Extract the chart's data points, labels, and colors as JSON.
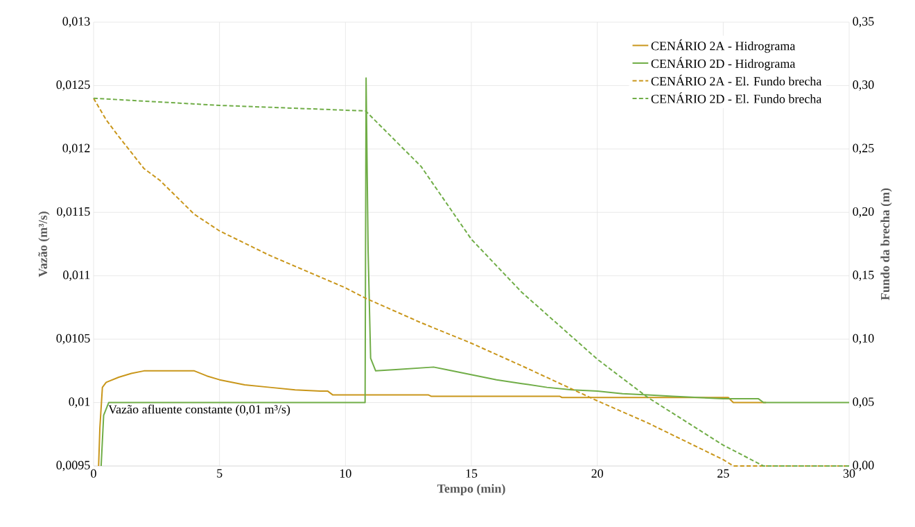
{
  "chart_data": {
    "type": "line",
    "xlabel": "Tempo (min)",
    "ylabel": "Vazão (m³/s)",
    "y2label": "Fundo da brecha (m)",
    "xlim": [
      0,
      30
    ],
    "xticks": [
      0,
      5,
      10,
      15,
      20,
      25,
      30
    ],
    "ylim": [
      0.0095,
      0.013
    ],
    "yticks": [
      {
        "value": 0.0095,
        "label": "0,0095"
      },
      {
        "value": 0.01,
        "label": "0,01"
      },
      {
        "value": 0.0105,
        "label": "0,0105"
      },
      {
        "value": 0.011,
        "label": "0,011"
      },
      {
        "value": 0.0115,
        "label": "0,0115"
      },
      {
        "value": 0.012,
        "label": "0,012"
      },
      {
        "value": 0.0125,
        "label": "0,0125"
      },
      {
        "value": 0.013,
        "label": "0,013"
      }
    ],
    "y2lim": [
      0,
      0.35
    ],
    "y2ticks": [
      {
        "value": 0,
        "label": "0,00"
      },
      {
        "value": 0.05,
        "label": "0,05"
      },
      {
        "value": 0.1,
        "label": "0,10"
      },
      {
        "value": 0.15,
        "label": "0,15"
      },
      {
        "value": 0.2,
        "label": "0,20"
      },
      {
        "value": 0.25,
        "label": "0,25"
      },
      {
        "value": 0.3,
        "label": "0,30"
      },
      {
        "value": 0.35,
        "label": "0,35"
      }
    ],
    "grid": true,
    "legend": "top right",
    "annotations": [
      {
        "text": "Vazão afluente constante (0,01 m³/s)",
        "x": 0.5,
        "y": 0.01
      }
    ],
    "series": [
      {
        "name": "CENÁRIO 2A - Hidrograma",
        "color": "#c9961a",
        "line_style": "solid",
        "x": [
          0.2,
          0.25,
          0.35,
          0.5,
          1,
          1.5,
          2,
          3,
          4,
          4.5,
          5,
          6,
          7,
          8,
          9,
          9.3,
          9.5,
          13.3,
          13.4,
          18.5,
          18.6,
          25.2,
          25.4,
          26.7
        ],
        "values": [
          0.0095,
          0.0098,
          0.01012,
          0.01016,
          0.0102,
          0.01023,
          0.01025,
          0.01025,
          0.01025,
          0.01021,
          0.01018,
          0.01014,
          0.01012,
          0.0101,
          0.01009,
          0.01009,
          0.01006,
          0.01006,
          0.01005,
          0.01005,
          0.01004,
          0.01004,
          0.01,
          0.01
        ]
      },
      {
        "name": "CENÁRIO 2D - Hidrograma",
        "color": "#70ad47",
        "line_style": "solid",
        "x": [
          0.3,
          0.4,
          0.6,
          10.78,
          10.82,
          10.9,
          11.0,
          11.2,
          12,
          13.5,
          14,
          15,
          16,
          17,
          18,
          19,
          20,
          21,
          22,
          23,
          24,
          25,
          26.4,
          26.6,
          30
        ],
        "values": [
          0.0095,
          0.0099,
          0.01,
          0.01,
          0.01256,
          0.0112,
          0.01035,
          0.01025,
          0.01026,
          0.01028,
          0.01026,
          0.01022,
          0.01018,
          0.01015,
          0.01012,
          0.0101,
          0.01009,
          0.01007,
          0.01006,
          0.01005,
          0.01004,
          0.01003,
          0.01003,
          0.01,
          0.01
        ]
      },
      {
        "name": "CENÁRIO 2A - El. Fundo brecha",
        "color": "#c9961a",
        "line_style": "dashed",
        "axis": "y2",
        "x": [
          0,
          0.5,
          1,
          2,
          2.63,
          4,
          5,
          7,
          10,
          10.8,
          13,
          15,
          17,
          20,
          22,
          25,
          25.4,
          30
        ],
        "values": [
          0.29,
          0.273,
          0.2598,
          0.2346,
          0.2253,
          0.1985,
          0.1854,
          0.166,
          0.1405,
          0.1323,
          0.113,
          0.0968,
          0.079,
          0.0514,
          0.034,
          0.005,
          0,
          0
        ]
      },
      {
        "name": "CENÁRIO 2D - El. Fundo brecha",
        "color": "#70ad47",
        "line_style": "dashed",
        "axis": "y2",
        "x": [
          0,
          5,
          10.8,
          13,
          15,
          17,
          20,
          22,
          25,
          26.6,
          30
        ],
        "values": [
          0.29,
          0.2844,
          0.28,
          0.2363,
          0.1788,
          0.137,
          0.0842,
          0.0541,
          0.0164,
          0,
          0
        ]
      }
    ]
  }
}
